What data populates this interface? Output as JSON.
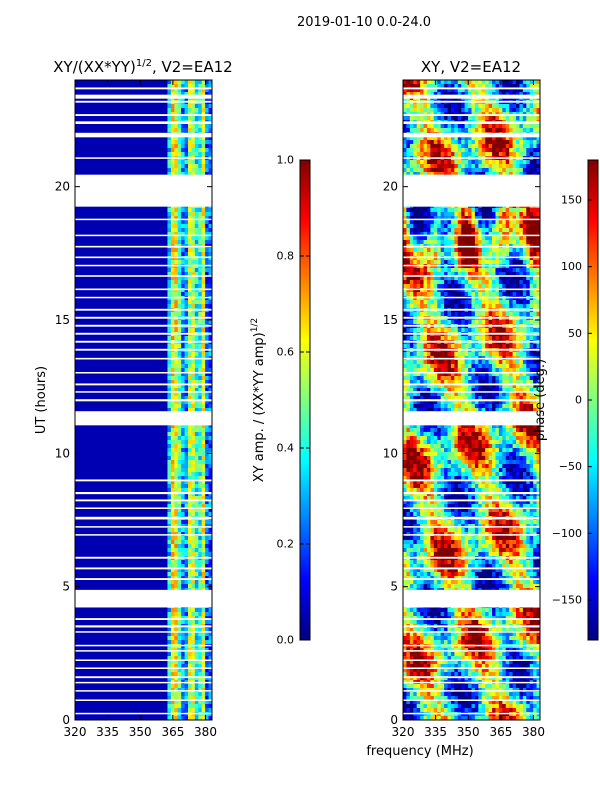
{
  "chart_data": {
    "suptitle": "2019-01-10 0.0-24.0",
    "xlabel": "frequency (MHz)",
    "panels": [
      {
        "id": "amp",
        "type": "heatmap",
        "title": "XY/(XX*YY)^(1/2), V2=EA12",
        "title_main": "XY/(XX*YY)",
        "title_sup": "1/2",
        "title_tail": ", V2=EA12",
        "ylabel": "UT (hours)",
        "xlim": [
          320,
          383
        ],
        "ylim": [
          0,
          24
        ],
        "xticks": [
          "320",
          "335",
          "350",
          "365",
          "380"
        ],
        "yticks": [
          "0",
          "5",
          "10",
          "15",
          "20"
        ],
        "colorbar": {
          "label": "XY amp. / (XX*YY amp)^(1/2)",
          "label_main": "XY amp. / (XX*YY amp)",
          "label_sup": "1/2",
          "range": [
            0.0,
            1.0
          ],
          "ticks": [
            "0.0",
            "0.2",
            "0.4",
            "0.6",
            "0.8",
            "1.0"
          ]
        }
      },
      {
        "id": "phase",
        "type": "heatmap",
        "title": "XY, V2=EA12",
        "ylabel": "",
        "xlim": [
          320,
          383
        ],
        "ylim": [
          0,
          24
        ],
        "xticks": [
          "320",
          "335",
          "350",
          "365",
          "380"
        ],
        "yticks": [
          "0",
          "5",
          "10",
          "15",
          "20"
        ],
        "colorbar": {
          "label": "phase (deg.)",
          "range": [
            -180,
            180
          ],
          "ticks": [
            "−150",
            "−100",
            "−50",
            "0",
            "50",
            "100",
            "150"
          ]
        }
      }
    ],
    "flagged_ut_hours": [
      [
        0.22,
        0.27
      ],
      [
        0.72,
        0.77
      ],
      [
        1.07,
        1.12
      ],
      [
        1.38,
        1.43
      ],
      [
        1.57,
        1.64
      ],
      [
        1.92,
        1.97
      ],
      [
        2.22,
        2.27
      ],
      [
        2.57,
        2.62
      ],
      [
        2.77,
        2.82
      ],
      [
        3.28,
        3.33
      ],
      [
        3.47,
        3.55
      ],
      [
        3.75,
        3.82
      ],
      [
        4.22,
        4.88
      ],
      [
        5.25,
        5.32
      ],
      [
        5.65,
        5.72
      ],
      [
        6.05,
        6.12
      ],
      [
        6.92,
        6.97
      ],
      [
        7.22,
        7.27
      ],
      [
        7.52,
        7.62
      ],
      [
        7.92,
        7.97
      ],
      [
        8.2,
        8.27
      ],
      [
        8.47,
        8.55
      ],
      [
        8.95,
        9.02
      ],
      [
        11.05,
        11.58
      ],
      [
        11.95,
        12.03
      ],
      [
        12.28,
        12.33
      ],
      [
        12.55,
        12.62
      ],
      [
        13.0,
        13.05
      ],
      [
        13.52,
        13.58
      ],
      [
        13.85,
        13.92
      ],
      [
        14.15,
        14.22
      ],
      [
        14.45,
        14.52
      ],
      [
        14.75,
        14.82
      ],
      [
        15.05,
        15.12
      ],
      [
        15.35,
        15.42
      ],
      [
        15.82,
        15.87
      ],
      [
        16.12,
        16.18
      ],
      [
        16.62,
        16.68
      ],
      [
        17.02,
        17.07
      ],
      [
        17.32,
        17.38
      ],
      [
        17.72,
        17.78
      ],
      [
        18.15,
        18.2
      ],
      [
        18.75,
        18.8
      ],
      [
        19.25,
        20.45
      ],
      [
        21.05,
        21.1
      ],
      [
        21.85,
        22.02
      ],
      [
        22.35,
        22.45
      ],
      [
        22.65,
        22.72
      ],
      [
        23.15,
        23.22
      ],
      [
        23.3,
        23.45
      ],
      [
        23.65,
        23.72
      ]
    ],
    "amp_bands_mhz": [
      {
        "range": [
          320,
          362.5
        ],
        "level": 0.05
      },
      {
        "range": [
          362.5,
          363.8
        ],
        "level": 0.35
      },
      {
        "range": [
          363.8,
          367.0
        ],
        "level": 0.62
      },
      {
        "range": [
          367.0,
          368.5
        ],
        "level": 0.45
      },
      {
        "range": [
          368.5,
          372.0
        ],
        "level": 0.28
      },
      {
        "range": [
          372.0,
          375.0
        ],
        "level": 0.55
      },
      {
        "range": [
          375.0,
          377.5
        ],
        "level": 0.4
      },
      {
        "range": [
          377.5,
          379.3
        ],
        "level": 0.58
      },
      {
        "range": [
          379.3,
          380.5
        ],
        "level": 0.42
      },
      {
        "range": [
          380.5,
          383
        ],
        "level": 0.22
      }
    ]
  }
}
